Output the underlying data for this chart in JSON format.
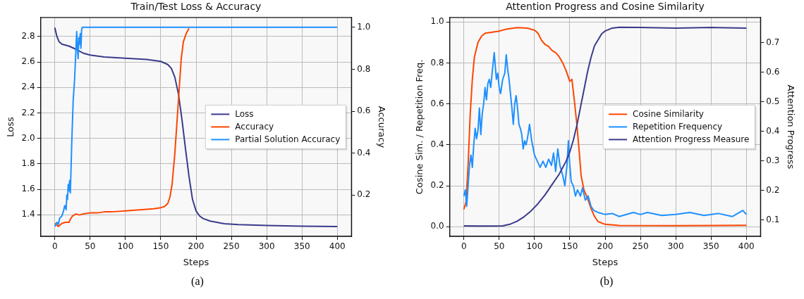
{
  "chart_data": [
    {
      "type": "line",
      "title": "Train/Test Loss & Accuracy",
      "xlabel": "Steps",
      "ylabel": "Loss",
      "y2label": "Accuracy",
      "annotations": [
        "(a)"
      ],
      "xlim": [
        -20,
        420
      ],
      "xticks": [
        0,
        50,
        100,
        150,
        200,
        250,
        300,
        350,
        400
      ],
      "ylim": [
        1.23,
        2.95
      ],
      "yticks": [
        1.4,
        1.6,
        1.8,
        {
          "value": 2,
          "label": "2.0"
        },
        2.2,
        2.4,
        2.6,
        2.8
      ],
      "y2lim": [
        0.003,
        1.047
      ],
      "y2ticks": [
        0.2,
        0.4,
        0.6,
        0.8,
        {
          "value": 1,
          "label": "1.0"
        }
      ],
      "grid": true,
      "legend": "center right",
      "marker": "none",
      "line_style": "solid",
      "series": [
        {
          "name": "Loss",
          "color": "#3a3b8c",
          "x": [
            0,
            3,
            6,
            10,
            20,
            30,
            40,
            50,
            70,
            100,
            130,
            150,
            160,
            165,
            170,
            175,
            180,
            185,
            190,
            195,
            200,
            205,
            210,
            220,
            240,
            260,
            300,
            350,
            400
          ],
          "values": [
            2.87,
            2.8,
            2.76,
            2.74,
            2.725,
            2.7,
            2.67,
            2.655,
            2.64,
            2.63,
            2.62,
            2.605,
            2.58,
            2.55,
            2.48,
            2.35,
            2.15,
            1.92,
            1.7,
            1.52,
            1.43,
            1.39,
            1.37,
            1.35,
            1.33,
            1.322,
            1.315,
            1.31,
            1.308
          ]
        },
        {
          "name": "Accuracy",
          "color": "#ff4500",
          "axis": "y2",
          "x": [
            0,
            2,
            5,
            10,
            15,
            20,
            22,
            25,
            30,
            35,
            40,
            50,
            60,
            70,
            80,
            100,
            120,
            140,
            150,
            155,
            160,
            163,
            166,
            170,
            173,
            176,
            179,
            182,
            186,
            190
          ],
          "values": [
            0.065,
            0.06,
            0.05,
            0.065,
            0.07,
            0.07,
            0.085,
            0.1,
            0.11,
            0.105,
            0.11,
            0.115,
            0.115,
            0.12,
            0.12,
            0.125,
            0.13,
            0.135,
            0.14,
            0.145,
            0.16,
            0.19,
            0.25,
            0.4,
            0.55,
            0.7,
            0.85,
            0.93,
            0.97,
            0.995
          ]
        },
        {
          "name": "Partial Solution Accuracy",
          "color": "#1e90ff",
          "axis": "y2",
          "x": [
            0,
            3,
            5,
            7,
            10,
            12,
            14,
            16,
            17,
            18,
            19,
            20,
            21,
            22,
            24,
            26,
            28,
            30,
            31,
            32,
            33,
            34,
            35,
            36,
            37,
            38,
            39,
            400
          ],
          "values": [
            0.05,
            0.07,
            0.06,
            0.09,
            0.1,
            0.12,
            0.15,
            0.13,
            0.2,
            0.18,
            0.25,
            0.22,
            0.27,
            0.21,
            0.45,
            0.65,
            0.75,
            0.9,
            0.98,
            0.9,
            0.85,
            0.95,
            0.92,
            0.97,
            0.9,
            0.99,
            1.0,
            1.0
          ]
        }
      ]
    },
    {
      "type": "line",
      "title": "Attention Progress and Cosine Similarity",
      "xlabel": "Steps",
      "ylabel": "Cosine Sim. / Repetition Freq.",
      "y2label": "Attention Progress",
      "annotations": [
        "(b)"
      ],
      "xlim": [
        -20,
        420
      ],
      "xticks": [
        0,
        50,
        100,
        150,
        200,
        250,
        300,
        350,
        400
      ],
      "ylim": [
        -0.047,
        1.022
      ],
      "yticks": [
        {
          "value": 0,
          "label": "0.0"
        },
        0.2,
        0.4,
        0.6,
        0.8,
        {
          "value": 1,
          "label": "1.0"
        }
      ],
      "y2lim": [
        0.044,
        0.786
      ],
      "y2ticks": [
        0.1,
        0.2,
        0.3,
        0.4,
        0.5,
        0.6,
        0.7
      ],
      "grid": true,
      "legend": "center right",
      "marker": "none",
      "line_style": "solid",
      "series": [
        {
          "name": "Cosine Similarity",
          "color": "#ff4500",
          "x": [
            0,
            3,
            6,
            9,
            12,
            15,
            20,
            25,
            30,
            40,
            50,
            60,
            75,
            90,
            100,
            105,
            110,
            115,
            120,
            125,
            130,
            135,
            140,
            145,
            150,
            153,
            156,
            160,
            163,
            166,
            170,
            175,
            180,
            185,
            190,
            200,
            220,
            300,
            400
          ],
          "values": [
            0.085,
            0.12,
            0.3,
            0.55,
            0.72,
            0.83,
            0.9,
            0.93,
            0.945,
            0.95,
            0.955,
            0.965,
            0.972,
            0.97,
            0.96,
            0.945,
            0.91,
            0.89,
            0.88,
            0.86,
            0.85,
            0.83,
            0.8,
            0.76,
            0.71,
            0.72,
            0.63,
            0.5,
            0.38,
            0.25,
            0.18,
            0.14,
            0.09,
            0.05,
            0.025,
            0.012,
            0.006,
            0.005,
            0.007
          ]
        },
        {
          "name": "Repetition Frequency",
          "color": "#1e90ff",
          "x": [
            0,
            2,
            4,
            6,
            8,
            10,
            12,
            14,
            16,
            18,
            20,
            22,
            24,
            26,
            28,
            30,
            32,
            34,
            36,
            38,
            40,
            43,
            46,
            48,
            50,
            52,
            55,
            58,
            60,
            62,
            64,
            66,
            68,
            70,
            72,
            74,
            76,
            78,
            80,
            82,
            84,
            86,
            88,
            90,
            93,
            96,
            100,
            104,
            108,
            112,
            116,
            120,
            124,
            127,
            130,
            133,
            136,
            140,
            143,
            146,
            148,
            150,
            152,
            155,
            158,
            161,
            165,
            168,
            172,
            176,
            180,
            184,
            190,
            200,
            210,
            220,
            240,
            250,
            260,
            280,
            300,
            320,
            340,
            360,
            380,
            395,
            400
          ],
          "values": [
            0.15,
            0.18,
            0.1,
            0.2,
            0.3,
            0.35,
            0.29,
            0.4,
            0.48,
            0.43,
            0.47,
            0.58,
            0.45,
            0.55,
            0.6,
            0.68,
            0.62,
            0.7,
            0.72,
            0.68,
            0.75,
            0.85,
            0.72,
            0.75,
            0.68,
            0.65,
            0.72,
            0.75,
            0.84,
            0.77,
            0.72,
            0.65,
            0.58,
            0.5,
            0.6,
            0.64,
            0.58,
            0.5,
            0.48,
            0.45,
            0.38,
            0.42,
            0.4,
            0.43,
            0.5,
            0.42,
            0.35,
            0.32,
            0.29,
            0.32,
            0.29,
            0.33,
            0.3,
            0.36,
            0.27,
            0.38,
            0.3,
            0.25,
            0.2,
            0.3,
            0.42,
            0.3,
            0.22,
            0.2,
            0.15,
            0.18,
            0.15,
            0.19,
            0.13,
            0.15,
            0.1,
            0.08,
            0.07,
            0.06,
            0.065,
            0.05,
            0.07,
            0.06,
            0.07,
            0.055,
            0.06,
            0.07,
            0.055,
            0.065,
            0.05,
            0.08,
            0.06
          ]
        },
        {
          "name": "Attention Progress Measure",
          "color": "#3a3b8c",
          "axis": "y2",
          "x": [
            0,
            20,
            40,
            55,
            65,
            75,
            85,
            95,
            105,
            115,
            125,
            135,
            145,
            150,
            155,
            160,
            165,
            170,
            175,
            180,
            185,
            190,
            195,
            200,
            210,
            220,
            250,
            300,
            350,
            400
          ],
          "values": [
            0.08,
            0.079,
            0.079,
            0.08,
            0.085,
            0.095,
            0.11,
            0.13,
            0.155,
            0.185,
            0.22,
            0.255,
            0.3,
            0.33,
            0.37,
            0.42,
            0.48,
            0.54,
            0.6,
            0.65,
            0.69,
            0.71,
            0.73,
            0.74,
            0.75,
            0.753,
            0.752,
            0.75,
            0.752,
            0.75
          ]
        }
      ]
    }
  ]
}
